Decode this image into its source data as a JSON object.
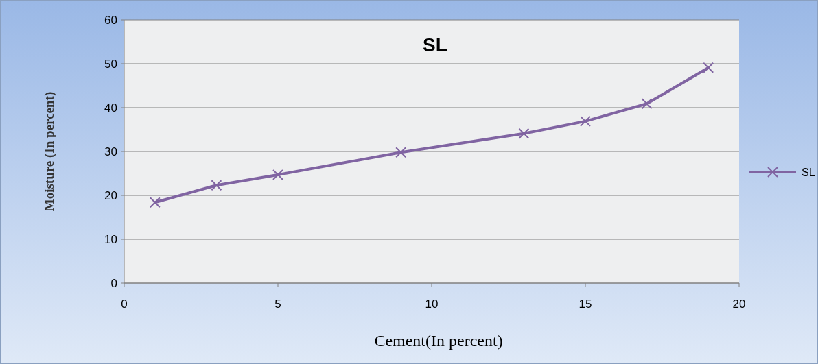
{
  "chart_data": {
    "type": "line",
    "title": "SL",
    "xlabel": "Cement(In  percent)",
    "ylabel": "Moisture (In percent)",
    "x": [
      1,
      3,
      5,
      9,
      13,
      15,
      17,
      19
    ],
    "series": [
      {
        "name": "SL",
        "color": "#8064a2",
        "values": [
          18.4,
          22.3,
          24.7,
          29.8,
          34.1,
          36.9,
          40.9,
          49.1
        ]
      }
    ],
    "xlim": [
      0,
      20
    ],
    "xticks": [
      0,
      5,
      10,
      15,
      20
    ],
    "ylim": [
      0,
      60
    ],
    "yticks": [
      0,
      10,
      20,
      30,
      40,
      50,
      60
    ],
    "grid": "y",
    "legend": "right",
    "marker": "cross",
    "line_style": "solid"
  }
}
